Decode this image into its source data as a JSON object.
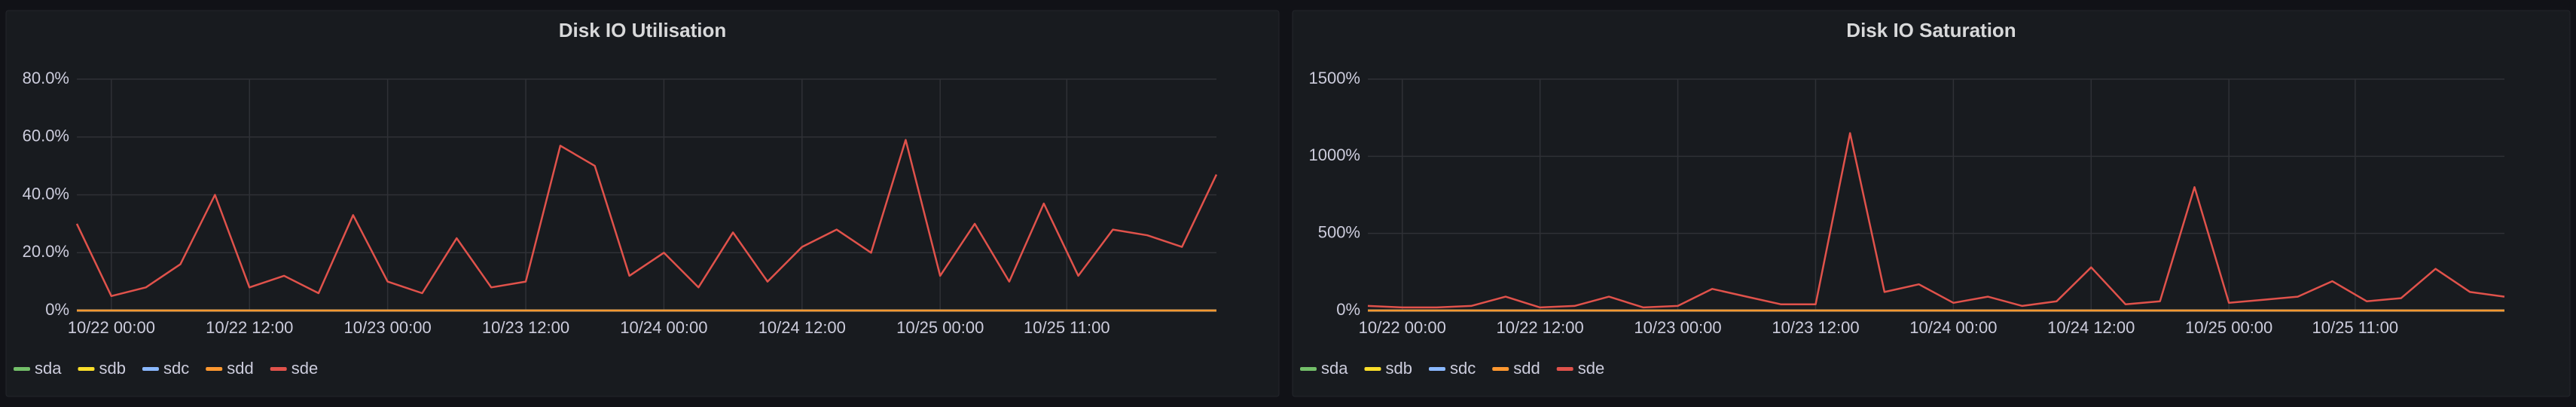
{
  "chart_data": [
    {
      "type": "line",
      "title": "Disk IO Utilisation",
      "x": [
        "10/21 21:00",
        "10/22 00:00",
        "10/22 03:00",
        "10/22 06:00",
        "10/22 09:00",
        "10/22 12:00",
        "10/22 15:00",
        "10/22 18:00",
        "10/22 21:00",
        "10/23 00:00",
        "10/23 03:00",
        "10/23 06:00",
        "10/23 09:00",
        "10/23 12:00",
        "10/23 15:00",
        "10/23 18:00",
        "10/23 21:00",
        "10/24 00:00",
        "10/24 03:00",
        "10/24 06:00",
        "10/24 09:00",
        "10/24 12:00",
        "10/24 15:00",
        "10/24 18:00",
        "10/24 21:00",
        "10/25 00:00",
        "10/25 03:00",
        "10/25 06:00",
        "10/25 09:00",
        "10/25 12:00",
        "10/25 15:00",
        "10/25 18:00",
        "10/25 21:00",
        "10/26 00:00"
      ],
      "xlim": [
        "10/21 21:00",
        "10/26 00:00"
      ],
      "xticks": [
        "10/22 00:00",
        "10/22 12:00",
        "10/23 00:00",
        "10/23 12:00",
        "10/24 00:00",
        "10/24 12:00",
        "10/25 00:00",
        "10/25 11:00"
      ],
      "ylim": [
        0,
        80
      ],
      "yticks": [
        {
          "value": 0,
          "label": "0%"
        },
        {
          "value": 20,
          "label": "20.0%"
        },
        {
          "value": 40,
          "label": "40.0%"
        },
        {
          "value": 60,
          "label": "60.0%"
        },
        {
          "value": 80,
          "label": "80.0%"
        }
      ],
      "grid": true,
      "legend": "bottom-left",
      "series": [
        {
          "name": "sda",
          "color": "#73bf69",
          "values": [
            0,
            0,
            0,
            0,
            0,
            0,
            0,
            0,
            0,
            0,
            0,
            0,
            0,
            0,
            0,
            0,
            0,
            0,
            0,
            0,
            0,
            0,
            0,
            0,
            0,
            0,
            0,
            0,
            0,
            0,
            0,
            0,
            0,
            0
          ]
        },
        {
          "name": "sdb",
          "color": "#fade2a",
          "values": [
            0,
            0,
            0,
            0,
            0,
            0,
            0,
            0,
            0,
            0,
            0,
            0,
            0,
            0,
            0,
            0,
            0,
            0,
            0,
            0,
            0,
            0,
            0,
            0,
            0,
            0,
            0,
            0,
            0,
            0,
            0,
            0,
            0,
            0
          ]
        },
        {
          "name": "sdc",
          "color": "#8ab8ff",
          "values": [
            0,
            0,
            0,
            0,
            0,
            0,
            0,
            0,
            0,
            0,
            0,
            0,
            0,
            0,
            0,
            0,
            0,
            0,
            0,
            0,
            0,
            0,
            0,
            0,
            0,
            0,
            0,
            0,
            0,
            0,
            0,
            0,
            0,
            0
          ]
        },
        {
          "name": "sdd",
          "color": "#ff9830",
          "values": [
            0,
            0,
            0,
            0,
            0,
            0,
            0,
            0,
            0,
            0,
            0,
            0,
            0,
            0,
            0,
            0,
            0,
            0,
            0,
            0,
            0,
            0,
            0,
            0,
            0,
            0,
            0,
            0,
            0,
            0,
            0,
            0,
            0,
            0
          ]
        },
        {
          "name": "sde",
          "color": "#e0524b",
          "values": [
            30,
            5,
            8,
            16,
            40,
            8,
            12,
            6,
            33,
            10,
            6,
            25,
            8,
            10,
            57,
            50,
            12,
            20,
            8,
            27,
            10,
            22,
            28,
            20,
            59,
            12,
            30,
            10,
            37,
            12,
            28,
            26,
            22,
            47
          ]
        }
      ]
    },
    {
      "type": "line",
      "title": "Disk IO Saturation",
      "x": [
        "10/21 21:00",
        "10/22 00:00",
        "10/22 03:00",
        "10/22 06:00",
        "10/22 09:00",
        "10/22 12:00",
        "10/22 15:00",
        "10/22 18:00",
        "10/22 21:00",
        "10/23 00:00",
        "10/23 03:00",
        "10/23 06:00",
        "10/23 09:00",
        "10/23 12:00",
        "10/23 15:00",
        "10/23 18:00",
        "10/23 21:00",
        "10/24 00:00",
        "10/24 03:00",
        "10/24 06:00",
        "10/24 09:00",
        "10/24 12:00",
        "10/24 15:00",
        "10/24 18:00",
        "10/24 21:00",
        "10/25 00:00",
        "10/25 03:00",
        "10/25 06:00",
        "10/25 09:00",
        "10/25 12:00",
        "10/25 15:00",
        "10/25 18:00",
        "10/25 21:00",
        "10/26 00:00"
      ],
      "xlim": [
        "10/21 21:00",
        "10/26 00:00"
      ],
      "xticks": [
        "10/22 00:00",
        "10/22 12:00",
        "10/23 00:00",
        "10/23 12:00",
        "10/24 00:00",
        "10/24 12:00",
        "10/25 00:00",
        "10/25 11:00"
      ],
      "ylim": [
        0,
        1500
      ],
      "yticks": [
        {
          "value": 0,
          "label": "0%"
        },
        {
          "value": 500,
          "label": "500%"
        },
        {
          "value": 1000,
          "label": "1000%"
        },
        {
          "value": 1500,
          "label": "1500%"
        }
      ],
      "grid": true,
      "legend": "bottom-left",
      "series": [
        {
          "name": "sda",
          "color": "#73bf69",
          "values": [
            0,
            0,
            0,
            0,
            0,
            0,
            0,
            0,
            0,
            0,
            0,
            0,
            0,
            0,
            0,
            0,
            0,
            0,
            0,
            0,
            0,
            0,
            0,
            0,
            0,
            0,
            0,
            0,
            0,
            0,
            0,
            0,
            0,
            0
          ]
        },
        {
          "name": "sdb",
          "color": "#fade2a",
          "values": [
            0,
            0,
            0,
            0,
            0,
            0,
            0,
            0,
            0,
            0,
            0,
            0,
            0,
            0,
            0,
            0,
            0,
            0,
            0,
            0,
            0,
            0,
            0,
            0,
            0,
            0,
            0,
            0,
            0,
            0,
            0,
            0,
            0,
            0
          ]
        },
        {
          "name": "sdc",
          "color": "#8ab8ff",
          "values": [
            0,
            0,
            0,
            0,
            0,
            0,
            0,
            0,
            0,
            0,
            0,
            0,
            0,
            0,
            0,
            0,
            0,
            0,
            0,
            0,
            0,
            0,
            0,
            0,
            0,
            0,
            0,
            0,
            0,
            0,
            0,
            0,
            0,
            0
          ]
        },
        {
          "name": "sdd",
          "color": "#ff9830",
          "values": [
            0,
            0,
            0,
            0,
            0,
            0,
            0,
            0,
            0,
            0,
            0,
            0,
            0,
            0,
            0,
            0,
            0,
            0,
            0,
            0,
            0,
            0,
            0,
            0,
            0,
            0,
            0,
            0,
            0,
            0,
            0,
            0,
            0,
            0
          ]
        },
        {
          "name": "sde",
          "color": "#e0524b",
          "values": [
            30,
            20,
            20,
            30,
            90,
            20,
            30,
            90,
            20,
            30,
            140,
            90,
            40,
            40,
            1150,
            120,
            170,
            50,
            90,
            30,
            60,
            280,
            40,
            60,
            800,
            50,
            70,
            90,
            190,
            60,
            80,
            270,
            120,
            90
          ]
        }
      ]
    }
  ]
}
